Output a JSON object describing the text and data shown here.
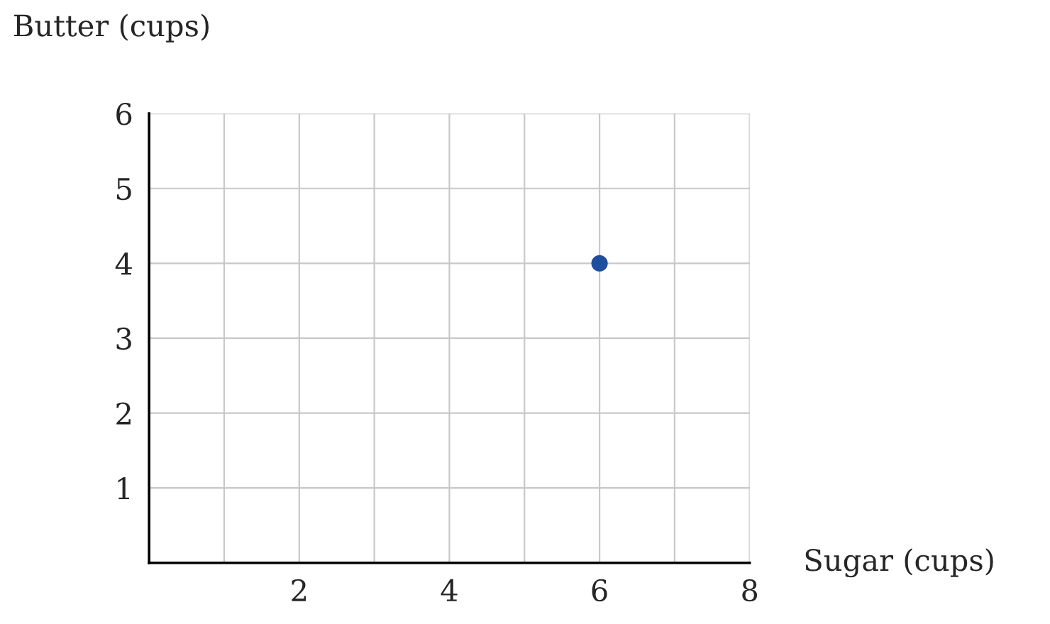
{
  "chart_data": {
    "type": "scatter",
    "xlabel": "Sugar (cups)",
    "ylabel": "Butter (cups)",
    "x": [
      6
    ],
    "values": [
      4
    ],
    "color": "#1f4e9c",
    "marker": "circle",
    "xlim": [
      0,
      8
    ],
    "ylim": [
      0,
      6
    ],
    "xticks": [
      {
        "value": 1,
        "label": null
      },
      2,
      {
        "value": 3,
        "label": null
      },
      4,
      {
        "value": 5,
        "label": null
      },
      6,
      {
        "value": 7,
        "label": null
      },
      8
    ],
    "yticks": [
      1,
      2,
      3,
      4,
      5,
      6
    ],
    "grid": true
  }
}
